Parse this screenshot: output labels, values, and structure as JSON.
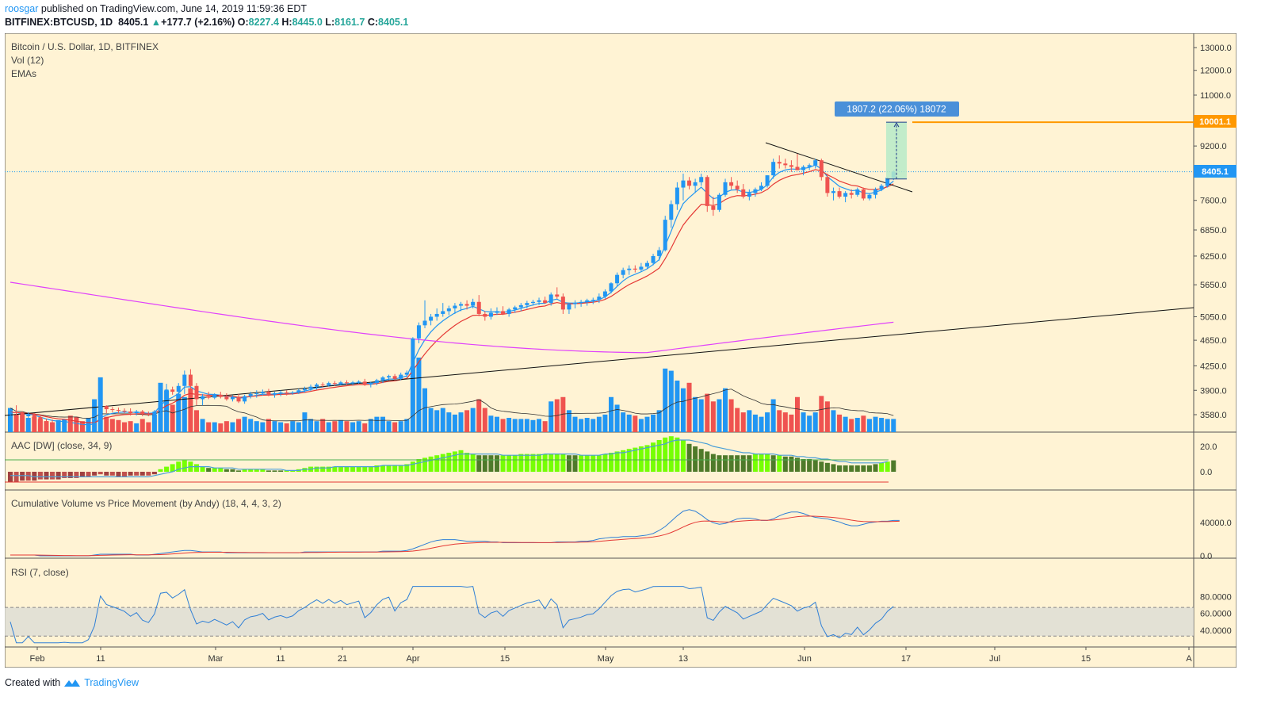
{
  "header": {
    "author": "roosgar",
    "published_text": "published on TradingView.com, June 14, 2019 11:59:36 EDT",
    "symbol": "BITFINEX:BTCUSD, 1D",
    "last": "8405.1",
    "change": "+177.7 (+2.16%)",
    "o_label": "O:",
    "o": "8227.4",
    "h_label": "H:",
    "h": "8445.0",
    "l_label": "L:",
    "l": "8161.7",
    "c_label": "C:",
    "c": "8405.1"
  },
  "panes": {
    "main": [
      "Bitcoin / U.S. Dollar, 1D, BITFINEX",
      "Vol (12)",
      "EMAs"
    ],
    "aac": "AAC [DW] (close, 34, 9)",
    "cvpm": "Cumulative Volume vs Price Movement (by Andy) (18, 4, 4, 3, 2)",
    "rsi": "RSI (7, close)"
  },
  "measure_label": "1807.2 (22.06%) 18072",
  "price_tags": {
    "current": "8405.1",
    "target": "10001.1"
  },
  "footer": {
    "created": "Created with",
    "brand": "TradingView"
  },
  "colors": {
    "bg": "#fff3d4",
    "up": "#2196f3",
    "down": "#ef5350",
    "ema_fast": "#2196f3",
    "ema_slow": "#e53935",
    "ema_long": "#e040fb",
    "target": "#ff9800",
    "aac_up": "#76ff03",
    "aac_dn": "#4e7a2a",
    "rsi": "#2f7fd6"
  },
  "chart_data": {
    "type": "candlestick",
    "price_axis_ticks": [
      "13000.0",
      "12000.0",
      "11000.0",
      "10000.0",
      "9200.0",
      "8400.0",
      "7600.0",
      "6850.0",
      "6250.0",
      "5650.0",
      "5050.0",
      "4650.0",
      "4250.0",
      "3900.0",
      "3580.0"
    ],
    "price_axis_scale": "log",
    "aac_ticks": [
      "20.0",
      "0.0"
    ],
    "cvpm_ticks": [
      "40000.0",
      "0.0"
    ],
    "rsi_ticks": [
      "80.0000",
      "60.0000",
      "40.0000"
    ],
    "x_axis_labels": [
      "Feb",
      "11",
      "Mar",
      "11",
      "21",
      "Apr",
      "15",
      "May",
      "13",
      "Jun",
      "17",
      "Jul",
      "15",
      "A"
    ],
    "dates_start": "2019-01-27",
    "candles": [
      [
        3590,
        3620,
        3560,
        3610,
        22
      ],
      [
        3610,
        3700,
        3580,
        3600,
        16
      ],
      [
        3600,
        3625,
        3550,
        3560,
        18
      ],
      [
        3560,
        3610,
        3540,
        3580,
        13
      ],
      [
        3580,
        3600,
        3520,
        3550,
        14
      ],
      [
        3550,
        3580,
        3480,
        3500,
        12
      ],
      [
        3500,
        3530,
        3460,
        3480,
        10
      ],
      [
        3480,
        3520,
        3440,
        3470,
        9
      ],
      [
        3470,
        3510,
        3440,
        3480,
        11
      ],
      [
        3480,
        3520,
        3450,
        3490,
        12
      ],
      [
        3490,
        3520,
        3440,
        3460,
        15
      ],
      [
        3460,
        3490,
        3430,
        3450,
        14
      ],
      [
        3450,
        3480,
        3410,
        3430,
        10
      ],
      [
        3430,
        3470,
        3410,
        3450,
        13
      ],
      [
        3450,
        3500,
        3420,
        3480,
        30
      ],
      [
        3480,
        3700,
        3460,
        3690,
        50
      ],
      [
        3690,
        3700,
        3600,
        3650,
        14
      ],
      [
        3650,
        3680,
        3610,
        3640,
        12
      ],
      [
        3640,
        3670,
        3600,
        3630,
        11
      ],
      [
        3630,
        3660,
        3600,
        3620,
        9
      ],
      [
        3620,
        3660,
        3570,
        3600,
        10
      ],
      [
        3600,
        3640,
        3570,
        3620,
        8
      ],
      [
        3620,
        3640,
        3560,
        3590,
        12
      ],
      [
        3590,
        3620,
        3560,
        3580,
        9
      ],
      [
        3580,
        3640,
        3570,
        3620,
        16
      ],
      [
        3620,
        3900,
        3600,
        3880,
        45
      ],
      [
        3880,
        3990,
        3800,
        3910,
        38
      ],
      [
        3910,
        3950,
        3840,
        3880,
        25
      ],
      [
        3880,
        4000,
        3850,
        3960,
        35
      ],
      [
        3960,
        4180,
        3850,
        4120,
        32
      ],
      [
        4120,
        4200,
        3920,
        3960,
        40
      ],
      [
        3960,
        4000,
        3700,
        3780,
        20
      ],
      [
        3780,
        3850,
        3700,
        3820,
        12
      ],
      [
        3820,
        3880,
        3780,
        3800,
        9
      ],
      [
        3800,
        3860,
        3780,
        3840,
        9
      ],
      [
        3840,
        3880,
        3790,
        3810,
        8
      ],
      [
        3810,
        3860,
        3760,
        3780,
        10
      ],
      [
        3780,
        3830,
        3750,
        3810,
        9
      ],
      [
        3810,
        3850,
        3730,
        3750,
        12
      ],
      [
        3750,
        3840,
        3720,
        3820,
        14
      ],
      [
        3820,
        3880,
        3790,
        3850,
        12
      ],
      [
        3850,
        3900,
        3800,
        3860,
        10
      ],
      [
        3860,
        3910,
        3830,
        3880,
        9
      ],
      [
        3880,
        3920,
        3820,
        3840,
        12
      ],
      [
        3840,
        3880,
        3800,
        3860,
        10
      ],
      [
        3860,
        3900,
        3820,
        3870,
        9
      ],
      [
        3870,
        3900,
        3830,
        3860,
        8
      ],
      [
        3860,
        3890,
        3840,
        3870,
        10
      ],
      [
        3870,
        3920,
        3850,
        3900,
        9
      ],
      [
        3900,
        3950,
        3870,
        3920,
        18
      ],
      [
        3920,
        3980,
        3890,
        3950,
        12
      ],
      [
        3950,
        4000,
        3910,
        3980,
        10
      ],
      [
        3980,
        4010,
        3940,
        3970,
        12
      ],
      [
        3970,
        4020,
        3950,
        4000,
        9
      ],
      [
        4000,
        4030,
        3960,
        3990,
        10
      ],
      [
        3990,
        4030,
        3970,
        4010,
        11
      ],
      [
        4010,
        4040,
        3980,
        4000,
        10
      ],
      [
        4000,
        4030,
        3970,
        4010,
        9
      ],
      [
        4010,
        4040,
        3990,
        4020,
        10
      ],
      [
        4020,
        4060,
        3960,
        3980,
        8
      ],
      [
        3980,
        4020,
        3940,
        4000,
        12
      ],
      [
        4000,
        4060,
        3970,
        4040,
        14
      ],
      [
        4040,
        4100,
        4000,
        4080,
        14
      ],
      [
        4080,
        4120,
        4040,
        4100,
        10
      ],
      [
        4100,
        4130,
        4040,
        4060,
        9
      ],
      [
        4060,
        4150,
        4040,
        4120,
        10
      ],
      [
        4120,
        4180,
        4080,
        4150,
        12
      ],
      [
        4150,
        4700,
        4120,
        4680,
        60
      ],
      [
        4680,
        4950,
        4600,
        4900,
        68
      ],
      [
        4900,
        5350,
        4850,
        4980,
        40
      ],
      [
        4980,
        5100,
        4900,
        5050,
        22
      ],
      [
        5050,
        5200,
        4980,
        5100,
        20
      ],
      [
        5100,
        5300,
        5050,
        5150,
        22
      ],
      [
        5150,
        5250,
        5080,
        5200,
        18
      ],
      [
        5200,
        5300,
        5100,
        5250,
        16
      ],
      [
        5250,
        5320,
        5150,
        5280,
        18
      ],
      [
        5280,
        5350,
        5180,
        5250,
        20
      ],
      [
        5250,
        5380,
        5200,
        5320,
        22
      ],
      [
        5320,
        5450,
        5060,
        5100,
        30
      ],
      [
        5100,
        5150,
        4980,
        5050,
        22
      ],
      [
        5050,
        5200,
        5000,
        5120,
        15
      ],
      [
        5120,
        5220,
        5080,
        5150,
        14
      ],
      [
        5150,
        5240,
        5080,
        5100,
        12
      ],
      [
        5100,
        5210,
        5050,
        5180,
        13
      ],
      [
        5180,
        5250,
        5120,
        5220,
        12
      ],
      [
        5220,
        5300,
        5150,
        5260,
        12
      ],
      [
        5260,
        5340,
        5200,
        5300,
        12
      ],
      [
        5300,
        5360,
        5250,
        5320,
        11
      ],
      [
        5320,
        5400,
        5260,
        5350,
        12
      ],
      [
        5350,
        5420,
        5280,
        5300,
        10
      ],
      [
        5300,
        5500,
        5250,
        5460,
        28
      ],
      [
        5460,
        5600,
        5380,
        5420,
        30
      ],
      [
        5420,
        5480,
        5100,
        5180,
        32
      ],
      [
        5180,
        5300,
        5100,
        5280,
        20
      ],
      [
        5280,
        5350,
        5200,
        5300,
        14
      ],
      [
        5300,
        5360,
        5230,
        5320,
        12
      ],
      [
        5320,
        5380,
        5250,
        5350,
        13
      ],
      [
        5350,
        5400,
        5280,
        5360,
        12
      ],
      [
        5360,
        5480,
        5300,
        5420,
        14
      ],
      [
        5420,
        5560,
        5380,
        5520,
        16
      ],
      [
        5520,
        5700,
        5480,
        5680,
        32
      ],
      [
        5680,
        5900,
        5620,
        5850,
        25
      ],
      [
        5850,
        6000,
        5780,
        5950,
        18
      ],
      [
        5950,
        6050,
        5850,
        5980,
        16
      ],
      [
        5980,
        6050,
        5900,
        5960,
        15
      ],
      [
        5960,
        6100,
        5920,
        6020,
        12
      ],
      [
        6020,
        6150,
        5980,
        6100,
        14
      ],
      [
        6100,
        6300,
        6050,
        6250,
        16
      ],
      [
        6250,
        6450,
        6150,
        6380,
        20
      ],
      [
        6380,
        7200,
        6350,
        7100,
        58
      ],
      [
        7100,
        7600,
        6900,
        7500,
        56
      ],
      [
        7500,
        8100,
        7350,
        7950,
        47
      ],
      [
        7950,
        8350,
        7600,
        8150,
        40
      ],
      [
        8150,
        8250,
        7900,
        8000,
        45
      ],
      [
        8000,
        8200,
        7800,
        8100,
        32
      ],
      [
        8100,
        8350,
        8000,
        8250,
        30
      ],
      [
        8250,
        8300,
        7300,
        7450,
        35
      ],
      [
        7450,
        7700,
        7200,
        7350,
        28
      ],
      [
        7350,
        7800,
        7300,
        7750,
        30
      ],
      [
        7750,
        8200,
        7700,
        8100,
        40
      ],
      [
        8100,
        8250,
        7900,
        8000,
        30
      ],
      [
        8000,
        8150,
        7800,
        7900,
        22
      ],
      [
        7900,
        8050,
        7650,
        7700,
        18
      ],
      [
        7700,
        7900,
        7600,
        7800,
        20
      ],
      [
        7800,
        7950,
        7700,
        7900,
        16
      ],
      [
        7900,
        8100,
        7850,
        8000,
        14
      ],
      [
        8000,
        8300,
        7950,
        8300,
        18
      ],
      [
        8300,
        8800,
        8200,
        8700,
        30
      ],
      [
        8700,
        8900,
        8500,
        8650,
        20
      ],
      [
        8650,
        8800,
        8500,
        8600,
        18
      ],
      [
        8600,
        8750,
        8400,
        8550,
        16
      ],
      [
        8550,
        8950,
        8450,
        8450,
        32
      ],
      [
        8450,
        8600,
        8300,
        8550,
        18
      ],
      [
        8550,
        8650,
        8450,
        8600,
        15
      ],
      [
        8600,
        8800,
        8500,
        8750,
        18
      ],
      [
        8750,
        8800,
        8150,
        8250,
        33
      ],
      [
        8250,
        8350,
        7700,
        7800,
        28
      ],
      [
        7800,
        7950,
        7600,
        7850,
        20
      ],
      [
        7850,
        7950,
        7650,
        7700,
        16
      ],
      [
        7700,
        7850,
        7550,
        7800,
        14
      ],
      [
        7800,
        7900,
        7650,
        7750,
        12
      ],
      [
        7750,
        7950,
        7700,
        7900,
        13
      ],
      [
        7900,
        7950,
        7600,
        7650,
        15
      ],
      [
        7650,
        7800,
        7600,
        7750,
        12
      ],
      [
        7750,
        7950,
        7650,
        7900,
        14
      ],
      [
        7900,
        8050,
        7850,
        8000,
        13
      ],
      [
        8000,
        8250,
        7950,
        8227,
        12
      ],
      [
        8227,
        8445,
        8161,
        8405,
        12
      ]
    ],
    "aac": [
      -8,
      -8,
      -7,
      -7,
      -7,
      -6,
      -6,
      -6,
      -6,
      -5,
      -5,
      -5,
      -4,
      -4,
      -3,
      -2,
      -3,
      -3,
      -4,
      -4,
      -3,
      -3,
      -3,
      -3,
      -2,
      2,
      4,
      6,
      8,
      9,
      8,
      6,
      4,
      3,
      3,
      3,
      2,
      2,
      1,
      2,
      2,
      2,
      2,
      1,
      1,
      1,
      1,
      1,
      2,
      3,
      4,
      4,
      4,
      4,
      4,
      4,
      4,
      4,
      4,
      4,
      4,
      5,
      5,
      5,
      5,
      5,
      6,
      8,
      10,
      11,
      12,
      13,
      14,
      15,
      16,
      17,
      15,
      14,
      13,
      13,
      13,
      13,
      13,
      13,
      13,
      14,
      14,
      14,
      14,
      14,
      14,
      14,
      14,
      13,
      13,
      13,
      13,
      13,
      13,
      14,
      15,
      16,
      17,
      18,
      19,
      20,
      21,
      23,
      25,
      27,
      28,
      27,
      25,
      22,
      20,
      18,
      16,
      14,
      13,
      13,
      13,
      13,
      13,
      13,
      14,
      14,
      14,
      13,
      13,
      12,
      12,
      11,
      10,
      10,
      9,
      8,
      7,
      6,
      5,
      5,
      5,
      5,
      5,
      5,
      6,
      7,
      8,
      9
    ],
    "aac_signal": [
      -3,
      -3,
      -3,
      -3,
      -4,
      -4,
      -4,
      -4,
      -4,
      -4,
      -4,
      -4,
      -4,
      -4,
      -4,
      -4,
      -4,
      -4,
      -4,
      -4,
      -4,
      -4,
      -4,
      -4,
      -3,
      -2,
      -1,
      0,
      2,
      3,
      4,
      4,
      4,
      4,
      3,
      3,
      3,
      3,
      2,
      2,
      2,
      2,
      2,
      2,
      2,
      2,
      1,
      1,
      1,
      2,
      2,
      3,
      3,
      3,
      4,
      4,
      4,
      4,
      4,
      4,
      4,
      4,
      5,
      5,
      5,
      5,
      5,
      6,
      7,
      8,
      9,
      10,
      11,
      12,
      13,
      14,
      14,
      14,
      14,
      14,
      14,
      14,
      13,
      13,
      13,
      13,
      13,
      13,
      13,
      14,
      14,
      14,
      14,
      14,
      14,
      13,
      13,
      13,
      13,
      14,
      14,
      15,
      15,
      16,
      17,
      18,
      19,
      20,
      21,
      22,
      24,
      25,
      25,
      25,
      24,
      23,
      22,
      20,
      19,
      18,
      17,
      16,
      15,
      15,
      14,
      14,
      14,
      14,
      13,
      13,
      13,
      12,
      12,
      11,
      11,
      10,
      10,
      9,
      8,
      8,
      7,
      7,
      7,
      7,
      7,
      7,
      8
    ],
    "cvpm": [
      1,
      1,
      1,
      1,
      1,
      0,
      0,
      0,
      0,
      0,
      0,
      0,
      0,
      0,
      1,
      2,
      2,
      2,
      2,
      2,
      2,
      1,
      1,
      1,
      2,
      3,
      4,
      5,
      6,
      7,
      7,
      6,
      5,
      5,
      5,
      5,
      4,
      4,
      4,
      4,
      4,
      4,
      4,
      4,
      4,
      4,
      4,
      4,
      4,
      5,
      5,
      5,
      5,
      5,
      5,
      5,
      5,
      5,
      5,
      5,
      5,
      5,
      6,
      6,
      6,
      6,
      7,
      9,
      12,
      15,
      18,
      20,
      21,
      21,
      21,
      20,
      19,
      19,
      19,
      19,
      18,
      18,
      17,
      17,
      17,
      17,
      17,
      17,
      17,
      17,
      17,
      18,
      18,
      18,
      18,
      19,
      19,
      20,
      22,
      23,
      24,
      24,
      25,
      25,
      25,
      26,
      27,
      29,
      33,
      38,
      45,
      52,
      58,
      60,
      58,
      53,
      47,
      43,
      41,
      42,
      45,
      48,
      49,
      49,
      48,
      46,
      46,
      48,
      52,
      55,
      57,
      57,
      55,
      52,
      50,
      49,
      48,
      46,
      44,
      41,
      39,
      39,
      41,
      43,
      44,
      45,
      45,
      46,
      46
    ]
  }
}
